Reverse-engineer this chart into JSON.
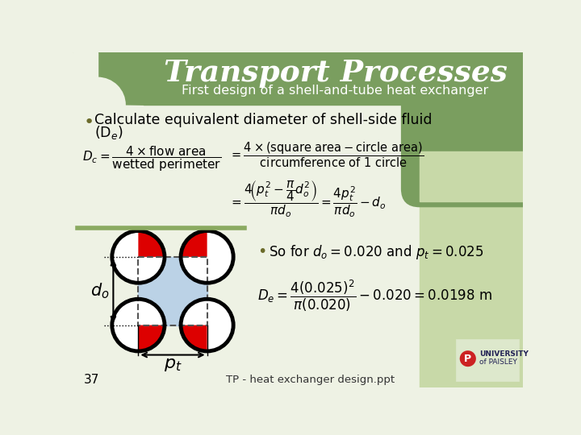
{
  "title": "Transport Processes",
  "subtitle": "First design of a shell-and-tube heat exchanger",
  "header_color": "#7a9e5f",
  "body_bg": "#eef2e4",
  "right_panel_color": "#c8d9a8",
  "slide_number": "37",
  "footer_text": "TP - heat exchanger design.ppt",
  "tube_color": "#aac8e8",
  "red_color": "#dd0000",
  "green_line_color": "#8aaa60"
}
